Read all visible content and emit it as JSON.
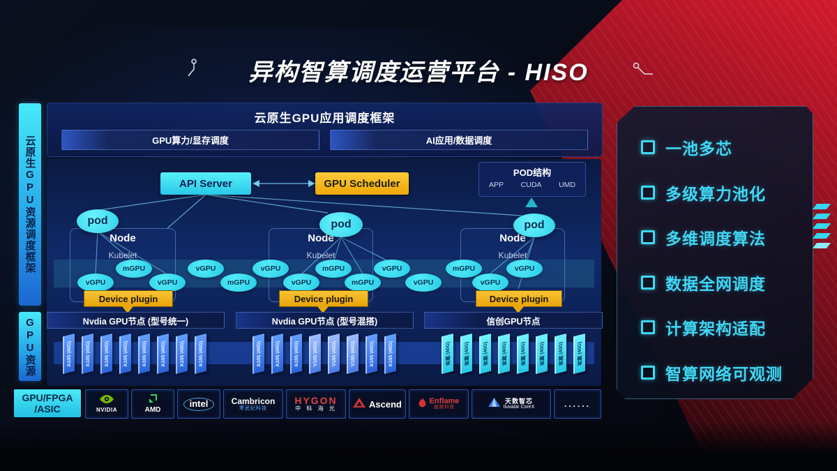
{
  "title": {
    "text": "异构智算调度运营平台 - HISO"
  },
  "sidebar": {
    "top": "云原生GPU资源调度框架",
    "bottom": "GPU资源"
  },
  "app_framework": {
    "title": "云原生GPU应用调度框架",
    "items": [
      "GPU算力/显存调度",
      "AI应用/数据调度"
    ]
  },
  "control": {
    "api_server": "API Server",
    "gpu_scheduler": "GPU Scheduler",
    "pod_struct": {
      "title": "POD结构",
      "items": [
        "APP",
        "CUDA",
        "UMD"
      ]
    }
  },
  "nodes": [
    {
      "pod": "pod",
      "node": "Node",
      "kubelet": "Kubelet",
      "device_plugin": "Device plugin"
    },
    {
      "pod": "pod",
      "node": "Node",
      "kubelet": "Kubelet",
      "device_plugin": "Device plugin"
    },
    {
      "pod": "pod",
      "node": "Node",
      "kubelet": "Kubelet",
      "device_plugin": "Device plugin"
    }
  ],
  "gpu_ellipses": [
    "vGPU",
    "mGPU",
    "vGPU",
    "vGPU",
    "mGPU",
    "vGPU",
    "vGPU",
    "mGPU",
    "mGPU",
    "vGPU",
    "vGPU",
    "mGPU",
    "vGPU",
    "vGPU"
  ],
  "gpu_groups": [
    {
      "header": "Nvdia GPU节点 (型号统一)",
      "cards": [
        "A100 (40G)",
        "A100 (40G)",
        "A100 (40G)",
        "A100 (40G)",
        "A100 (40G)",
        "A100 (40G)",
        "A100 (40G)",
        "A100 (40G)"
      ],
      "style": "blue"
    },
    {
      "header": "Nvdia GPU节点 (型号混搭)",
      "cards": [
        "A100 (40G)",
        "A100 (40G)",
        "A100 (40G)",
        "V100 (40G)",
        "V100 (40G)",
        "V100 (40G)",
        "A100 (40G)",
        "A100 (40G)"
      ],
      "style": "blue"
    },
    {
      "header": "信创GPU节点",
      "cards": [
        "昇腾 (40G)",
        "昇腾 (40G)",
        "昇腾 (40G)",
        "昇腾 (40G)",
        "昇腾 (40G)",
        "昇腾 (40G)",
        "昇腾 (40G)",
        "昇腾 (40G)"
      ],
      "style": "cyan"
    }
  ],
  "vendor_bar": {
    "label_line1": "GPU/FPGA",
    "label_line2": "/ASIC",
    "vendors": [
      {
        "key": "nvidia",
        "icon": "nvidia-logo-icon",
        "name": "NVIDIA"
      },
      {
        "key": "amd",
        "icon": "amd-logo-icon",
        "name": "AMD"
      },
      {
        "key": "intel",
        "icon": "intel-logo-icon",
        "name": "intel"
      },
      {
        "key": "cambricon",
        "name": "Cambricon",
        "sub": "寒武纪科技"
      },
      {
        "key": "hygon",
        "name": "HYGON",
        "sub": "中 科 海 光"
      },
      {
        "key": "ascend",
        "icon": "ascend-logo-icon",
        "name": "Ascend"
      },
      {
        "key": "enflame",
        "icon": "enflame-logo-icon",
        "name": "Enflame",
        "sub": "燧原科技"
      },
      {
        "key": "iluvatar",
        "icon": "iluvatar-logo-icon",
        "name": "天数智芯",
        "sub": "Iluvatar CoreX"
      },
      {
        "key": "more",
        "name": "......"
      }
    ]
  },
  "features": [
    "一池多芯",
    "多级算力池化",
    "多维调度算法",
    "数据全网调度",
    "计算架构适配",
    "智算网络可观测"
  ],
  "colors": {
    "accent_cyan": "#3fd9f2",
    "accent_amber": "#f2b01c",
    "card_blue": "#3a6fe0",
    "background_red": "#a31223",
    "nvidia_green": "#76b900"
  }
}
